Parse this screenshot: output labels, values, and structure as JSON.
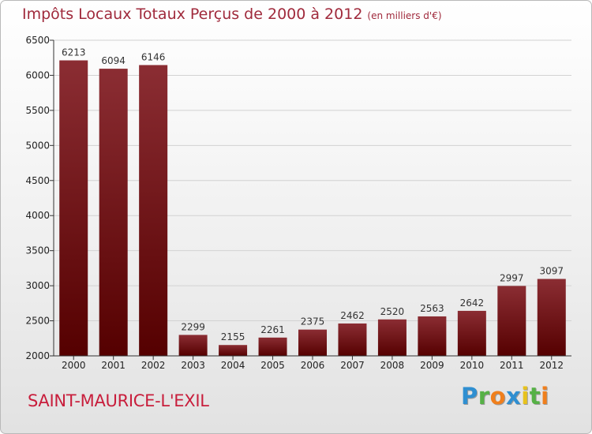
{
  "header": {
    "title": "Impôts Locaux Totaux Perçus de 2000 à 2012",
    "subtitle": "(en milliers d'€)"
  },
  "footer": {
    "place": "SAINT-MAURICE-L'EXIL",
    "logo": "Proxiti"
  },
  "colors": {
    "title": "#a02a3c",
    "place": "#c81e3c",
    "bar_top": "#8b2d33",
    "bar_bottom": "#550000",
    "grid": "#d2d2d2"
  },
  "logo_letters": [
    {
      "ch": "P",
      "color": "#2f8fd1"
    },
    {
      "ch": "r",
      "color": "#56b146"
    },
    {
      "ch": "o",
      "color": "#f07f1c"
    },
    {
      "ch": "x",
      "color": "#2f8fd1"
    },
    {
      "ch": "i",
      "color": "#e8c21c"
    },
    {
      "ch": "t",
      "color": "#56b146"
    },
    {
      "ch": "i",
      "color": "#f07f1c"
    }
  ],
  "chart_data": {
    "type": "bar",
    "title": "Impôts Locaux Totaux Perçus de 2000 à 2012",
    "subtitle": "(en milliers d'€)",
    "xlabel": "",
    "ylabel": "",
    "categories": [
      "2000",
      "2001",
      "2002",
      "2003",
      "2004",
      "2005",
      "2006",
      "2007",
      "2008",
      "2009",
      "2010",
      "2011",
      "2012"
    ],
    "values": [
      6213,
      6094,
      6146,
      2299,
      2155,
      2261,
      2375,
      2462,
      2520,
      2563,
      2642,
      2997,
      3097
    ],
    "ylim": [
      2000,
      6500
    ],
    "yticks": [
      2000,
      2500,
      3000,
      3500,
      4000,
      4500,
      5000,
      5500,
      6000,
      6500
    ],
    "grid": true,
    "legend": "none",
    "data_labels": true
  }
}
